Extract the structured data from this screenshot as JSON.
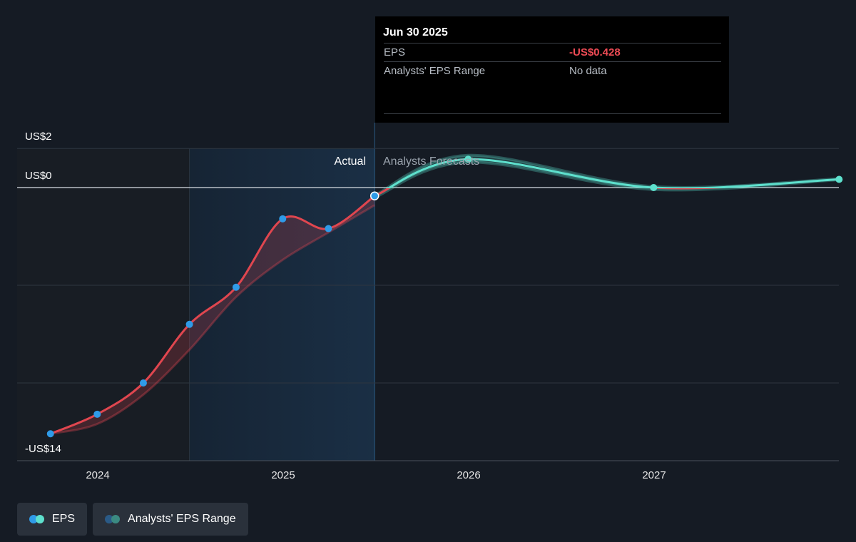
{
  "chart_data": {
    "type": "line",
    "ylim": [
      -14,
      2
    ],
    "y_ticks": [
      {
        "label": "US$2",
        "value": 2
      },
      {
        "label": "US$0",
        "value": 0
      },
      {
        "label": "-US$14",
        "value": -14
      }
    ],
    "x_ticks": [
      "2024",
      "2025",
      "2026",
      "2027"
    ],
    "regions": {
      "actual_label": "Actual",
      "forecast_label": "Analysts Forecasts"
    },
    "series": [
      {
        "name": "EPS",
        "kind": "actual",
        "color": "#e0464f",
        "marker_color": "#2f9be8",
        "x": [
          "2023-09-30",
          "2023-12-31",
          "2024-03-31",
          "2024-06-30",
          "2024-09-30",
          "2024-12-31",
          "2025-03-31",
          "2025-06-30"
        ],
        "y": [
          -12.6,
          -11.6,
          -10.0,
          -7.0,
          -5.1,
          -1.6,
          -2.1,
          -0.428
        ]
      },
      {
        "name": "EPS",
        "kind": "forecast",
        "color": "#5ee0cd",
        "x": [
          "2025-06-30",
          "2025-12-31",
          "2026-12-31",
          "2027-12-31"
        ],
        "y": [
          -0.428,
          1.45,
          0.0,
          0.42
        ]
      }
    ],
    "range_band": {
      "name": "Analysts' EPS Range",
      "x": [
        "2023-09-30",
        "2023-12-31",
        "2024-03-31",
        "2024-06-30",
        "2024-09-30",
        "2024-12-31",
        "2025-03-31",
        "2025-06-30"
      ],
      "y": [
        -12.6,
        -12.1,
        -10.6,
        -8.3,
        -5.6,
        -3.7,
        -2.3,
        -0.9
      ]
    },
    "forecast_band": {
      "x": [
        "2025-06-30",
        "2025-12-31",
        "2026-12-31",
        "2027-12-31"
      ],
      "low": [
        -0.5,
        1.3,
        -0.1,
        0.4
      ],
      "high": [
        -0.4,
        1.65,
        0.05,
        0.45
      ]
    }
  },
  "tooltip": {
    "date": "Jun 30 2025",
    "eps_label": "EPS",
    "eps_value": "-US$0.428",
    "range_label": "Analysts' EPS Range",
    "range_value": "No data"
  },
  "legend": {
    "eps_label": "EPS",
    "range_label": "Analysts' EPS Range"
  },
  "colors": {
    "background": "#151b24",
    "actual_shade": "#1a2f45",
    "eps_actual": "#e0464f",
    "eps_forecast": "#5ee0cd",
    "marker": "#2f9be8"
  }
}
